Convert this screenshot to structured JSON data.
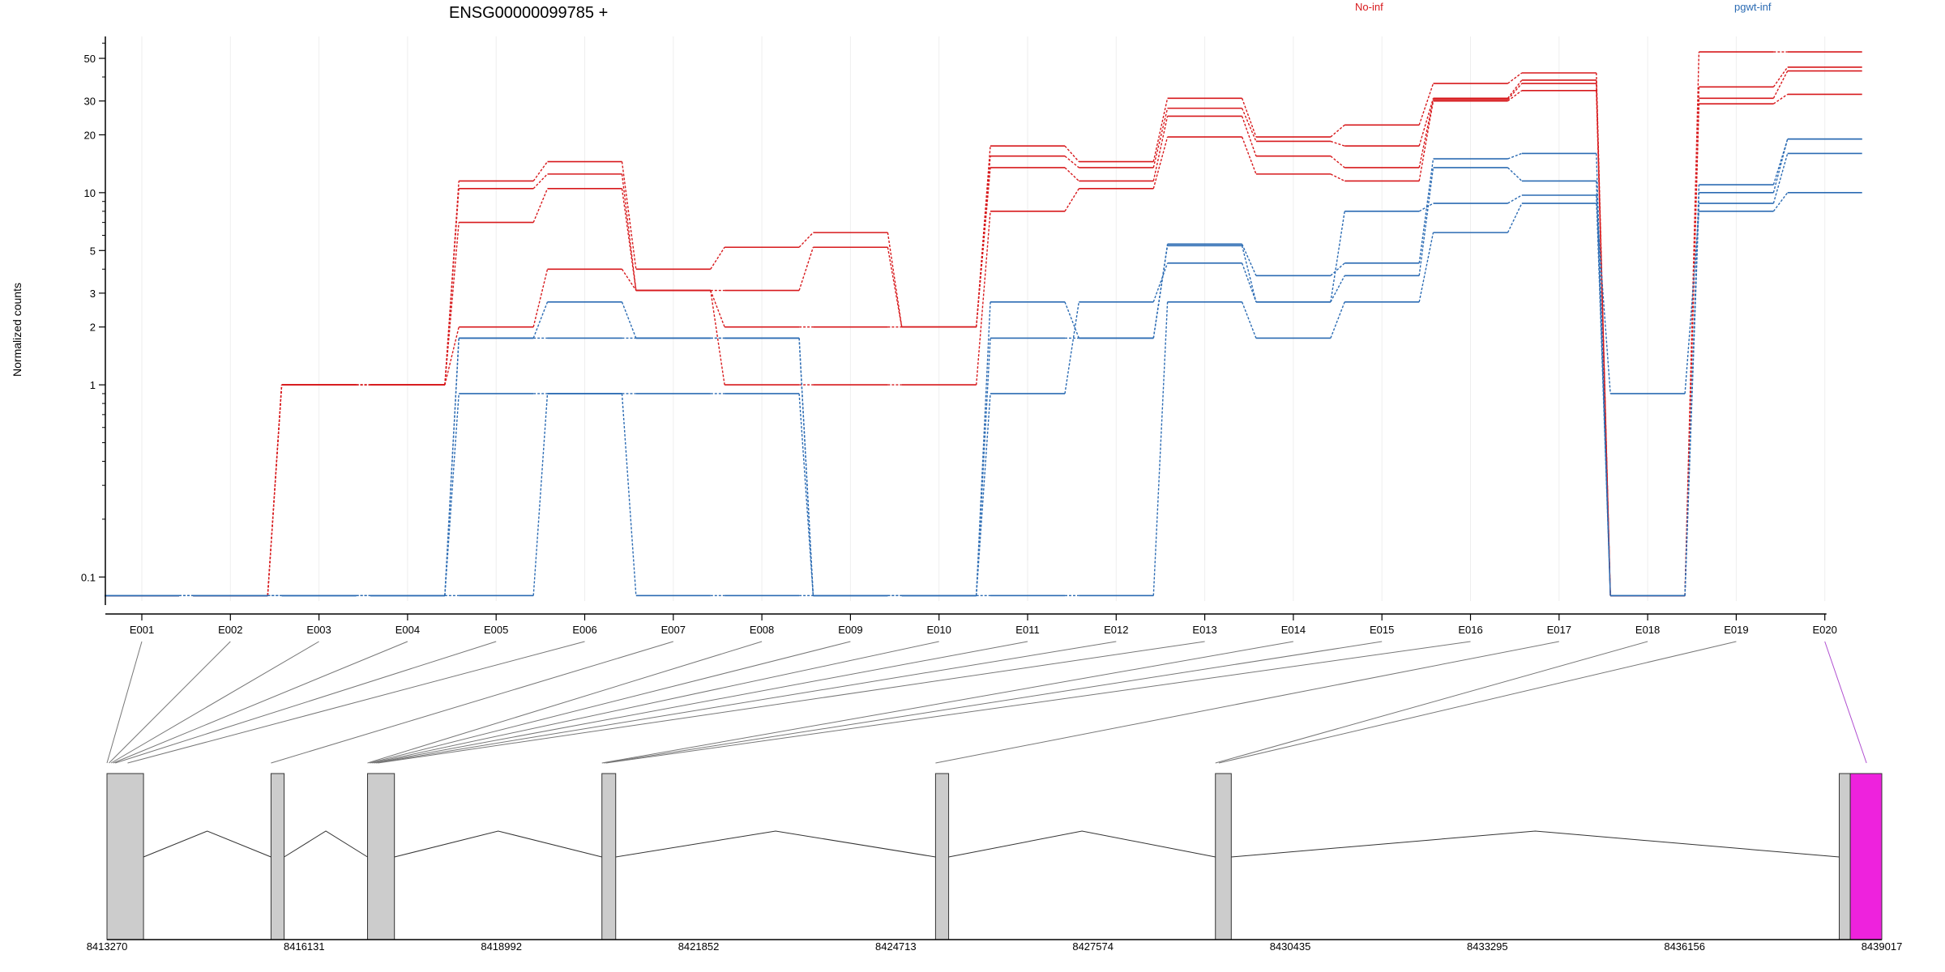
{
  "chart_data": {
    "type": "line",
    "title": "ENSG00000099785 +",
    "ylabel": "Normalized counts",
    "xlabel": "",
    "yscale": "log",
    "ylim": [
      0.075,
      65
    ],
    "yticks": [
      {
        "value": 0.1,
        "label": "0.1"
      },
      {
        "value": 1,
        "label": "1"
      },
      {
        "value": 2,
        "label": "2"
      },
      {
        "value": 3,
        "label": "3"
      },
      {
        "value": 5,
        "label": "5"
      },
      {
        "value": 10,
        "label": "10"
      },
      {
        "value": 20,
        "label": "20"
      },
      {
        "value": 30,
        "label": "30"
      },
      {
        "value": 50,
        "label": "50"
      }
    ],
    "categories": [
      "E001",
      "E002",
      "E003",
      "E004",
      "E005",
      "E006",
      "E007",
      "E008",
      "E009",
      "E010",
      "E011",
      "E012",
      "E013",
      "E014",
      "E015",
      "E016",
      "E017",
      "E018",
      "E019",
      "E020"
    ],
    "grid": "vertical-light",
    "legend": {
      "placement": "top-right"
    },
    "groups": [
      {
        "name": "No-inf",
        "color": "#d7191c",
        "series": [
          [
            0.08,
            0.08,
            1.0,
            1.0,
            11.5,
            14.5,
            4.0,
            5.2,
            6.2,
            2.0,
            17.5,
            14.5,
            31.0,
            19.5,
            22.5,
            37.0,
            42.0,
            0.08,
            54.0,
            54.0
          ],
          [
            0.08,
            0.08,
            1.0,
            1.0,
            10.5,
            12.5,
            3.1,
            3.1,
            5.2,
            2.0,
            15.5,
            13.5,
            27.5,
            18.5,
            17.5,
            31.0,
            38.5,
            0.08,
            35.5,
            45.0
          ],
          [
            0.08,
            0.08,
            1.0,
            1.0,
            7.0,
            10.5,
            3.1,
            2.0,
            2.0,
            2.0,
            13.5,
            11.5,
            25.0,
            15.5,
            13.5,
            30.5,
            37.0,
            0.08,
            31.0,
            43.0
          ],
          [
            0.08,
            0.08,
            1.0,
            1.0,
            2.0,
            4.0,
            3.1,
            1.0,
            1.0,
            1.0,
            8.0,
            10.5,
            19.5,
            12.5,
            11.5,
            30.0,
            34.0,
            0.08,
            29.0,
            32.5
          ]
        ]
      },
      {
        "name": "pgwt-inf",
        "color": "#2b6bb3",
        "series": [
          [
            0.08,
            0.08,
            0.08,
            0.08,
            1.75,
            2.7,
            1.75,
            1.75,
            0.08,
            0.08,
            2.7,
            1.75,
            5.4,
            3.7,
            4.3,
            15.0,
            16.0,
            0.08,
            11.0,
            19.0
          ],
          [
            0.08,
            0.08,
            0.08,
            0.08,
            1.75,
            1.75,
            1.75,
            1.75,
            0.08,
            0.08,
            1.75,
            1.75,
            5.3,
            2.7,
            3.7,
            13.5,
            11.5,
            0.08,
            10.0,
            19.0
          ],
          [
            0.08,
            0.08,
            0.08,
            0.08,
            0.9,
            0.9,
            0.9,
            0.9,
            0.08,
            0.08,
            0.9,
            2.7,
            4.3,
            2.7,
            8.0,
            8.8,
            9.7,
            0.08,
            8.8,
            16.0
          ],
          [
            0.08,
            0.08,
            0.08,
            0.08,
            0.08,
            0.9,
            0.08,
            0.08,
            0.08,
            0.08,
            0.08,
            0.08,
            2.7,
            1.75,
            2.7,
            6.2,
            8.8,
            0.9,
            8.0,
            10.0
          ]
        ]
      }
    ],
    "gene_model": {
      "coord_range": [
        8413270,
        8439017
      ],
      "axis_labels": [
        "8413270",
        "8416131",
        "8418992",
        "8421852",
        "8424713",
        "8427574",
        "8430435",
        "8433295",
        "8436156",
        "8439017"
      ],
      "exons": [
        {
          "start": 8413270,
          "end": 8413800
        },
        {
          "start": 8415650,
          "end": 8415840
        },
        {
          "start": 8417050,
          "end": 8417440
        },
        {
          "start": 8420450,
          "end": 8420650
        },
        {
          "start": 8425290,
          "end": 8425480
        },
        {
          "start": 8429350,
          "end": 8429580
        },
        {
          "start": 8438400,
          "end": 8438560
        },
        {
          "start": 8438560,
          "end": 8439017,
          "highlight": true
        }
      ],
      "junctions": [
        [
          8413800,
          8415650
        ],
        [
          8415840,
          8417050
        ],
        [
          8417440,
          8420450
        ],
        [
          8420650,
          8425290
        ],
        [
          8425480,
          8429350
        ],
        [
          8429580,
          8438400
        ]
      ],
      "exon_bin_starts": [
        8413270,
        8413300,
        8413330,
        8413360,
        8413390,
        8413570,
        8415650,
        8417050,
        8417080,
        8417110,
        8417140,
        8417170,
        8417200,
        8420450,
        8420480,
        8420510,
        8425290,
        8429350,
        8429400,
        8438400
      ],
      "highlight_color": "#ee22dd",
      "exon_color": "#cccccc"
    }
  }
}
